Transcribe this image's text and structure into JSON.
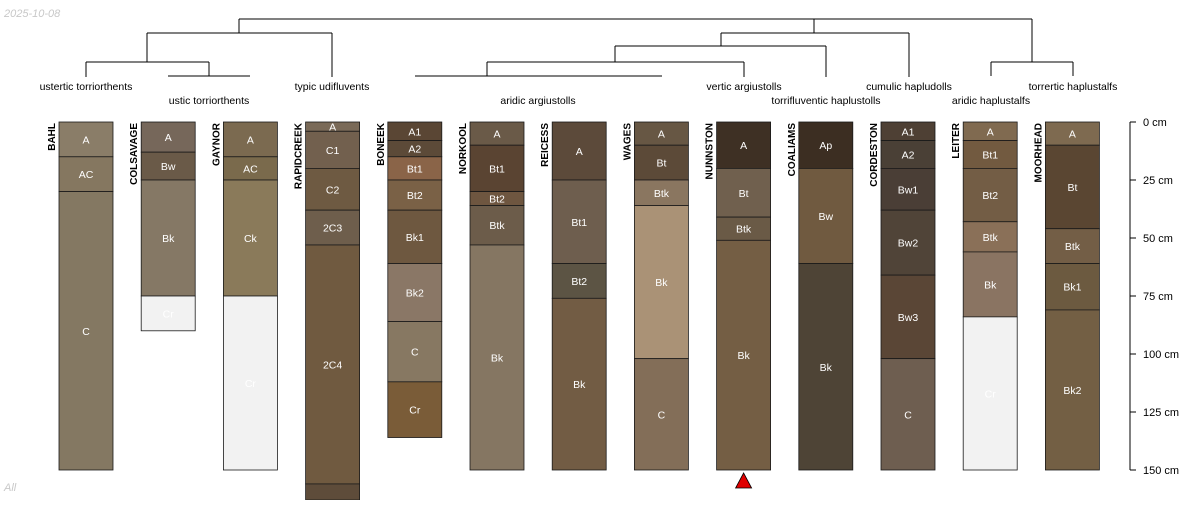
{
  "date_label": "2025-10-08",
  "subset_label": "All",
  "depth_axis": {
    "max_cm": 150,
    "ticks": [
      {
        "cm": 0,
        "label": "0 cm"
      },
      {
        "cm": 25,
        "label": "25 cm"
      },
      {
        "cm": 50,
        "label": "50 cm"
      },
      {
        "cm": 75,
        "label": "75 cm"
      },
      {
        "cm": 100,
        "label": "100 cm"
      },
      {
        "cm": 125,
        "label": "125 cm"
      },
      {
        "cm": 150,
        "label": "150 cm"
      }
    ]
  },
  "taxa_labels": [
    {
      "text": "ustertic torriorthents",
      "row": 0
    },
    {
      "text": "ustic torriorthents",
      "row": 1
    },
    {
      "text": "typic udifluvents",
      "row": 0
    },
    {
      "text": "aridic argiustolls",
      "row": 1
    },
    {
      "text": "vertic argiustolls",
      "row": 0
    },
    {
      "text": "torrifluventic haplustolls",
      "row": 1
    },
    {
      "text": "cumulic hapludolls",
      "row": 0
    },
    {
      "text": "aridic haplustalfs",
      "row": 1
    },
    {
      "text": "torrertic haplustalfs",
      "row": 0
    }
  ],
  "profiles": [
    {
      "name": "BAHL",
      "horizons": [
        {
          "name": "A",
          "top": 0,
          "bottom": 15,
          "color": "#8a7d68"
        },
        {
          "name": "AC",
          "top": 15,
          "bottom": 30,
          "color": "#857760"
        },
        {
          "name": "C",
          "top": 30,
          "bottom": 150,
          "color": "#847862"
        }
      ]
    },
    {
      "name": "COLSAVAGE",
      "horizons": [
        {
          "name": "A",
          "top": 0,
          "bottom": 13,
          "color": "#76675a"
        },
        {
          "name": "Bw",
          "top": 13,
          "bottom": 25,
          "color": "#6a5a48"
        },
        {
          "name": "Bk",
          "top": 25,
          "bottom": 75,
          "color": "#857865"
        },
        {
          "name": "Cr",
          "top": 75,
          "bottom": 90,
          "color": "#f2f2f2"
        }
      ]
    },
    {
      "name": "GAYNOR",
      "horizons": [
        {
          "name": "A",
          "top": 0,
          "bottom": 15,
          "color": "#7b6a50"
        },
        {
          "name": "AC",
          "top": 15,
          "bottom": 25,
          "color": "#7a6a4c"
        },
        {
          "name": "Ck",
          "top": 25,
          "bottom": 75,
          "color": "#8a7a5a"
        },
        {
          "name": "Cr",
          "top": 75,
          "bottom": 150,
          "color": "#f2f2f2"
        }
      ]
    },
    {
      "name": "RAPIDCREEK",
      "horizons": [
        {
          "name": "A",
          "top": 0,
          "bottom": 4,
          "color": "#7a6a58"
        },
        {
          "name": "C1",
          "top": 4,
          "bottom": 20,
          "color": "#72604e"
        },
        {
          "name": "C2",
          "top": 20,
          "bottom": 38,
          "color": "#6e5a42"
        },
        {
          "name": "2C3",
          "top": 38,
          "bottom": 53,
          "color": "#6e5e4c"
        },
        {
          "name": "2C4",
          "top": 53,
          "bottom": 156,
          "color": "#705a40"
        },
        {
          "name": "",
          "top": 156,
          "bottom": 170,
          "color": "#5e4c3a"
        }
      ]
    },
    {
      "name": "BONEEK",
      "horizons": [
        {
          "name": "A1",
          "top": 0,
          "bottom": 8,
          "color": "#5a4634"
        },
        {
          "name": "A2",
          "top": 8,
          "bottom": 15,
          "color": "#5c4a38"
        },
        {
          "name": "Bt1",
          "top": 15,
          "bottom": 25,
          "color": "#8a6448"
        },
        {
          "name": "Bt2",
          "top": 25,
          "bottom": 38,
          "color": "#7a6146"
        },
        {
          "name": "Bk1",
          "top": 38,
          "bottom": 61,
          "color": "#6e5840"
        },
        {
          "name": "Bk2",
          "top": 61,
          "bottom": 86,
          "color": "#8a7766"
        },
        {
          "name": "C",
          "top": 86,
          "bottom": 112,
          "color": "#877862"
        },
        {
          "name": "Cr",
          "top": 112,
          "bottom": 136,
          "color": "#7a5c38"
        }
      ]
    },
    {
      "name": "NORKOOL",
      "horizons": [
        {
          "name": "A",
          "top": 0,
          "bottom": 10,
          "color": "#6a5a48"
        },
        {
          "name": "Bt1",
          "top": 10,
          "bottom": 30,
          "color": "#5a4432"
        },
        {
          "name": "Bt2",
          "top": 30,
          "bottom": 36,
          "color": "#6e5640"
        },
        {
          "name": "Btk",
          "top": 36,
          "bottom": 53,
          "color": "#6c5c4a"
        },
        {
          "name": "Bk",
          "top": 53,
          "bottom": 150,
          "color": "#857662"
        }
      ]
    },
    {
      "name": "REICESS",
      "horizons": [
        {
          "name": "A",
          "top": 0,
          "bottom": 25,
          "color": "#5c4a3a"
        },
        {
          "name": "Bt1",
          "top": 25,
          "bottom": 61,
          "color": "#6e5e4e"
        },
        {
          "name": "Bt2",
          "top": 61,
          "bottom": 76,
          "color": "#5c5444"
        },
        {
          "name": "Bk",
          "top": 76,
          "bottom": 150,
          "color": "#725c44"
        }
      ]
    },
    {
      "name": "WAGES",
      "horizons": [
        {
          "name": "A",
          "top": 0,
          "bottom": 10,
          "color": "#675744"
        },
        {
          "name": "Bt",
          "top": 10,
          "bottom": 25,
          "color": "#5c4a38"
        },
        {
          "name": "Btk",
          "top": 25,
          "bottom": 36,
          "color": "#8a7660"
        },
        {
          "name": "Bk",
          "top": 36,
          "bottom": 102,
          "color": "#aa9276"
        },
        {
          "name": "C",
          "top": 102,
          "bottom": 150,
          "color": "#836e58"
        }
      ]
    },
    {
      "name": "NUNNSTON",
      "horizons": [
        {
          "name": "A",
          "top": 0,
          "bottom": 20,
          "color": "#3e3024"
        },
        {
          "name": "Bt",
          "top": 20,
          "bottom": 41,
          "color": "#70604e"
        },
        {
          "name": "Btk",
          "top": 41,
          "bottom": 51,
          "color": "#6a5a46"
        },
        {
          "name": "Bk",
          "top": 51,
          "bottom": 150,
          "color": "#745e44"
        }
      ]
    },
    {
      "name": "COALIAMS",
      "horizons": [
        {
          "name": "Ap",
          "top": 0,
          "bottom": 20,
          "color": "#3c2e22"
        },
        {
          "name": "Bw",
          "top": 20,
          "bottom": 61,
          "color": "#705a40"
        },
        {
          "name": "Bk",
          "top": 61,
          "bottom": 150,
          "color": "#4e4436"
        }
      ]
    },
    {
      "name": "CORDESTON",
      "horizons": [
        {
          "name": "A1",
          "top": 0,
          "bottom": 8,
          "color": "#4e4034"
        },
        {
          "name": "A2",
          "top": 8,
          "bottom": 20,
          "color": "#4a4036"
        },
        {
          "name": "Bw1",
          "top": 20,
          "bottom": 38,
          "color": "#4a3e36"
        },
        {
          "name": "Bw2",
          "top": 38,
          "bottom": 66,
          "color": "#504438"
        },
        {
          "name": "Bw3",
          "top": 66,
          "bottom": 102,
          "color": "#5a4636"
        },
        {
          "name": "C",
          "top": 102,
          "bottom": 150,
          "color": "#6e5e50"
        }
      ]
    },
    {
      "name": "LEITER",
      "horizons": [
        {
          "name": "A",
          "top": 0,
          "bottom": 8,
          "color": "#806a50"
        },
        {
          "name": "Bt1",
          "top": 8,
          "bottom": 20,
          "color": "#725a40"
        },
        {
          "name": "Bt2",
          "top": 20,
          "bottom": 43,
          "color": "#735d45"
        },
        {
          "name": "Btk",
          "top": 43,
          "bottom": 56,
          "color": "#8a7058"
        },
        {
          "name": "Bk",
          "top": 56,
          "bottom": 84,
          "color": "#8a7462"
        },
        {
          "name": "Cr",
          "top": 84,
          "bottom": 150,
          "color": "#f2f2f2"
        }
      ]
    },
    {
      "name": "MOORHEAD",
      "horizons": [
        {
          "name": "A",
          "top": 0,
          "bottom": 10,
          "color": "#7e6a50"
        },
        {
          "name": "Bt",
          "top": 10,
          "bottom": 46,
          "color": "#5a4632"
        },
        {
          "name": "Btk",
          "top": 46,
          "bottom": 61,
          "color": "#735e46"
        },
        {
          "name": "Bk1",
          "top": 61,
          "bottom": 81,
          "color": "#6c5a40"
        },
        {
          "name": "Bk2",
          "top": 81,
          "bottom": 150,
          "color": "#735f44"
        }
      ]
    }
  ],
  "marker": {
    "profile": "NUNNSTON",
    "color": "#e00000"
  }
}
